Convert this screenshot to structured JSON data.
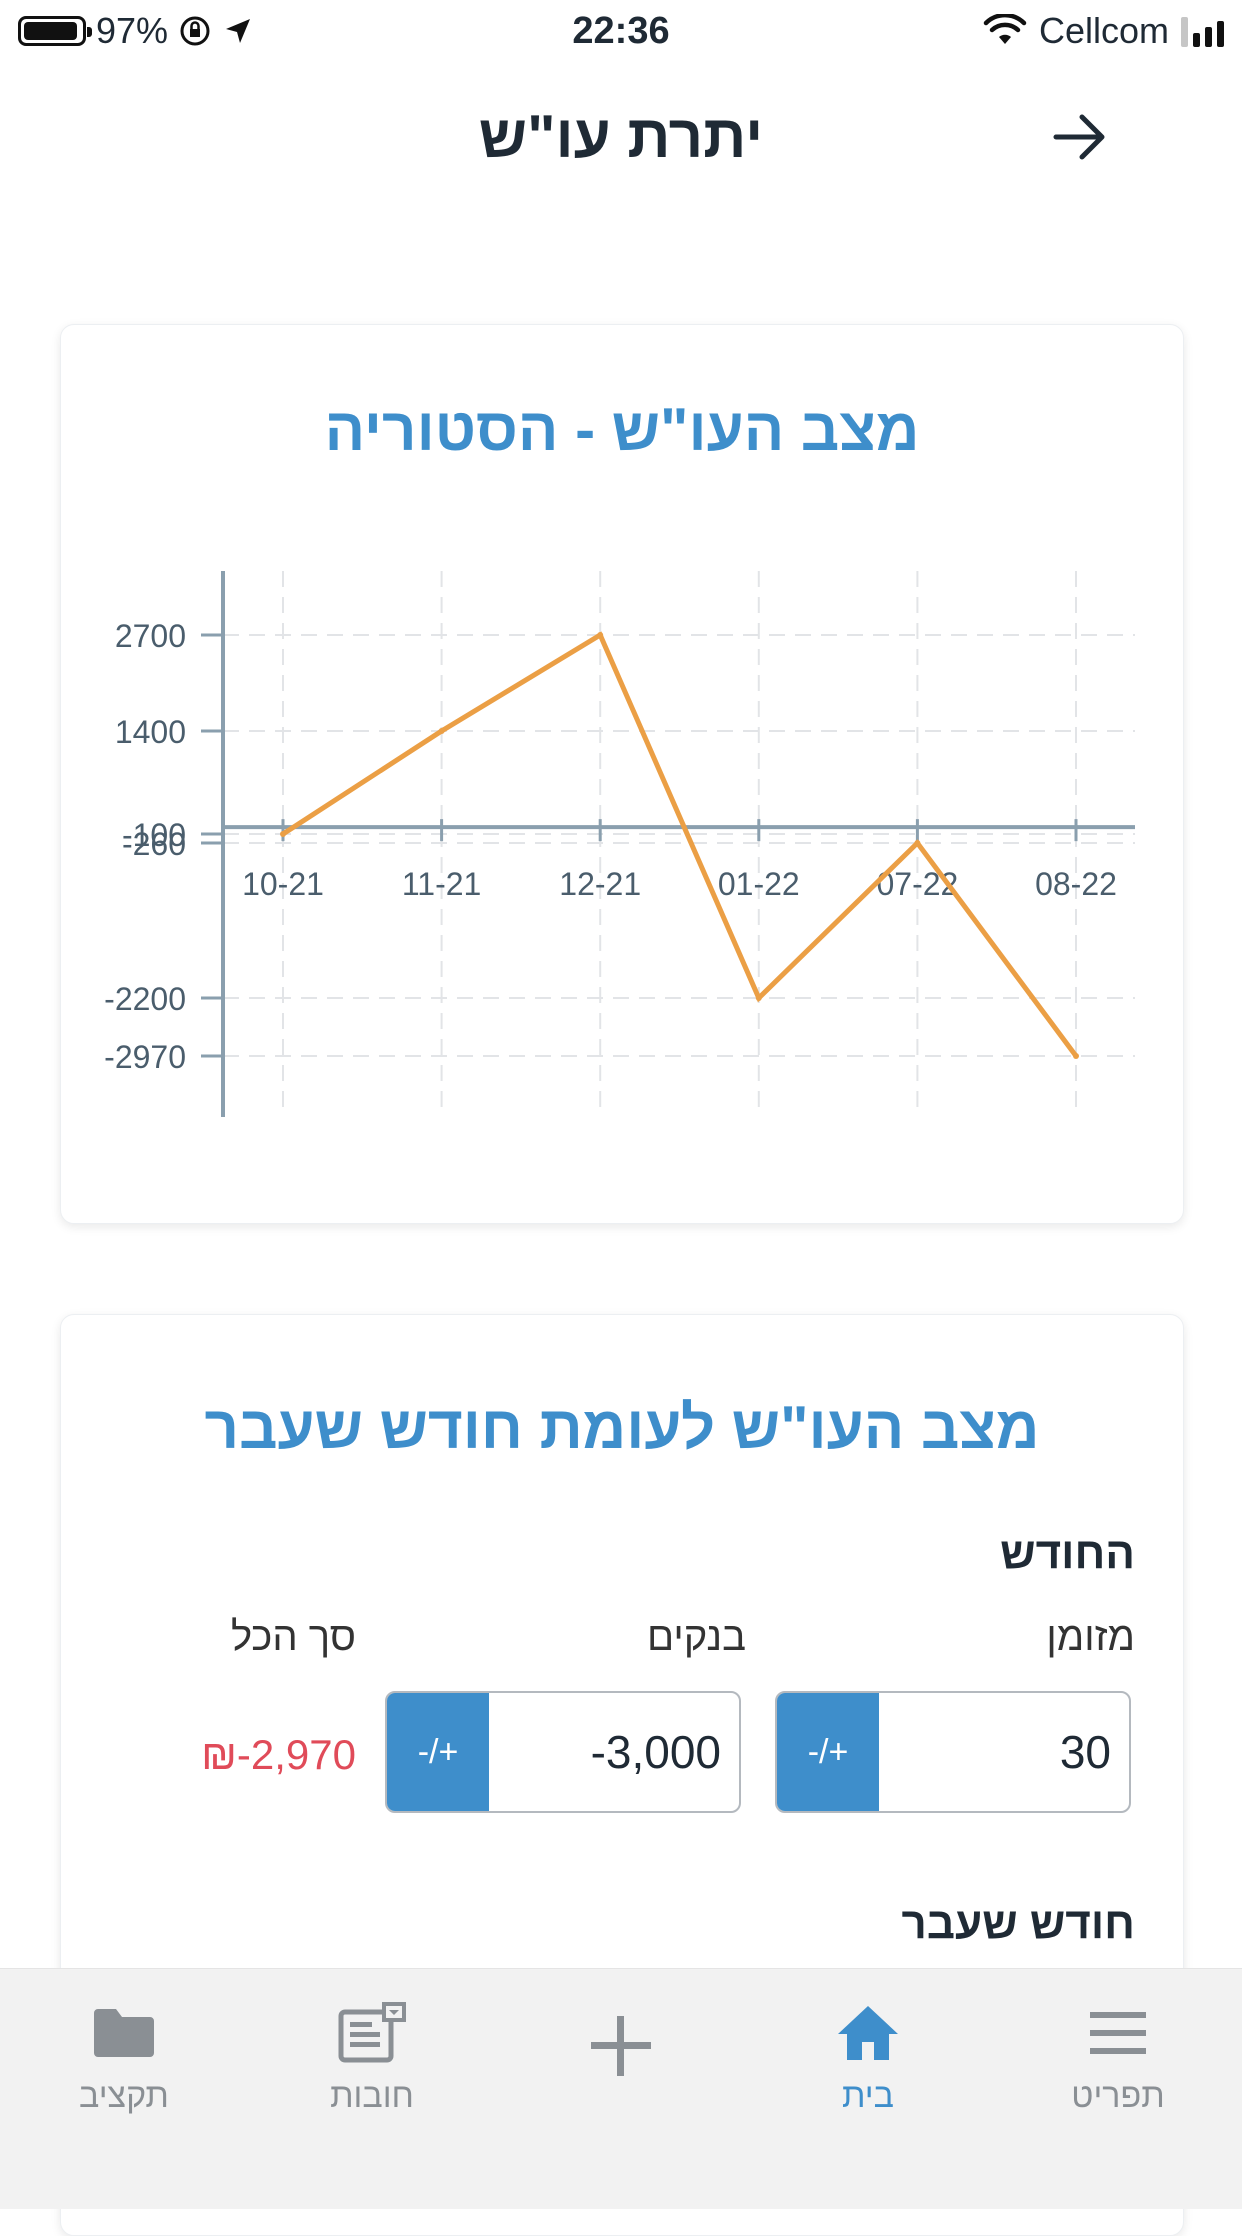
{
  "status_bar": {
    "battery": "97%",
    "time": "22:36",
    "carrier": "Cellcom"
  },
  "header": {
    "title": "יתרת עו\"ש"
  },
  "history_card": {
    "title": "מצב העו\"ש - הסטוריה"
  },
  "chart_data": {
    "type": "line",
    "title": "מצב העו\"ש - הסטוריה",
    "categories": [
      "10-21",
      "11-21",
      "12-21",
      "01-22",
      "07-22",
      "08-22"
    ],
    "series": [
      {
        "values": [
          -100,
          1400,
          2700,
          -2200,
          -260,
          -2970
        ]
      }
    ],
    "y_ticks": [
      2700,
      1400,
      -100,
      -260,
      -2200,
      -2970
    ],
    "grid": true,
    "line_color": "#eb9f45"
  },
  "compare_card": {
    "title": "מצב העו\"ש לעומת חודש שעבר",
    "this_month_label": "החודש",
    "cash_label": "מזומן",
    "banks_label": "בנקים",
    "total_label": "סך הכל",
    "cash_value": "30",
    "banks_value": "-3,000",
    "sign_toggle": "-/+",
    "total_value": "₪-2,970",
    "last_month_label": "חודש שעבר"
  },
  "bottom_nav": {
    "menu": "תפריט",
    "home": "בית",
    "add": "+",
    "debts": "חובות",
    "budget": "תקציב"
  },
  "colors": {
    "accent": "#3e8ecb",
    "negative": "#e04b59",
    "chart_line": "#eb9f45"
  }
}
